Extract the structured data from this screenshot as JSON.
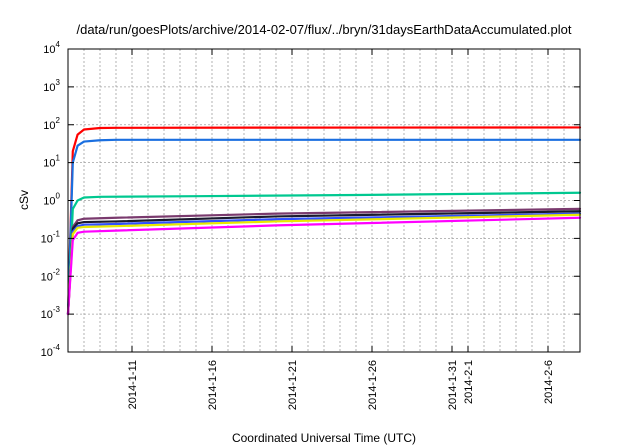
{
  "chart_data": {
    "type": "line",
    "title": "/data/run/goesPlots/archive/2014-02-07/flux/../bryn/31daysEarthDataAccumulated.plot",
    "xlabel": "Coordinated Universal Time (UTC)",
    "ylabel": "cSv",
    "y_scale": "log",
    "ylim": [
      0.0001,
      10000
    ],
    "y_ticks": [
      {
        "base": "10",
        "exp": "-4",
        "value": 0.0001
      },
      {
        "base": "10",
        "exp": "-3",
        "value": 0.001
      },
      {
        "base": "10",
        "exp": "-2",
        "value": 0.01
      },
      {
        "base": "10",
        "exp": "-1",
        "value": 0.1
      },
      {
        "base": "10",
        "exp": "0",
        "value": 1
      },
      {
        "base": "10",
        "exp": "1",
        "value": 10
      },
      {
        "base": "10",
        "exp": "2",
        "value": 100
      },
      {
        "base": "10",
        "exp": "3",
        "value": 1000
      },
      {
        "base": "10",
        "exp": "4",
        "value": 10000
      }
    ],
    "xlim": [
      "2014-01-07",
      "2014-02-08"
    ],
    "x_ticks": [
      {
        "label": "2014-1-11",
        "value": "2014-01-11"
      },
      {
        "label": "2014-1-16",
        "value": "2014-01-16"
      },
      {
        "label": "2014-1-21",
        "value": "2014-01-21"
      },
      {
        "label": "2014-1-26",
        "value": "2014-01-26"
      },
      {
        "label": "2014-1-31",
        "value": "2014-01-31"
      },
      {
        "label": "2014-2-1",
        "value": "2014-02-01"
      },
      {
        "label": "2014-2-6",
        "value": "2014-02-06"
      }
    ],
    "grid": true,
    "series": [
      {
        "color": "#ff0000",
        "points": [
          [
            "2014-01-07",
            0.001
          ],
          [
            "2014-01-07.3",
            20
          ],
          [
            "2014-01-07.6",
            55
          ],
          [
            "2014-01-08",
            75
          ],
          [
            "2014-01-09",
            82
          ],
          [
            "2014-01-10",
            83
          ],
          [
            "2014-01-20",
            84
          ],
          [
            "2014-02-08",
            85
          ]
        ]
      },
      {
        "color": "#1a6fe0",
        "points": [
          [
            "2014-01-07",
            0.001
          ],
          [
            "2014-01-07.3",
            10
          ],
          [
            "2014-01-07.6",
            28
          ],
          [
            "2014-01-08",
            36
          ],
          [
            "2014-01-09",
            39
          ],
          [
            "2014-01-10",
            40
          ],
          [
            "2014-01-20",
            40
          ],
          [
            "2014-02-08",
            40
          ]
        ]
      },
      {
        "color": "#00c890",
        "points": [
          [
            "2014-01-07",
            0.001
          ],
          [
            "2014-01-07.3",
            0.6
          ],
          [
            "2014-01-07.6",
            1.0
          ],
          [
            "2014-01-08",
            1.2
          ],
          [
            "2014-01-09",
            1.25
          ],
          [
            "2014-01-15",
            1.3
          ],
          [
            "2014-01-25",
            1.4
          ],
          [
            "2014-02-08",
            1.6
          ]
        ]
      },
      {
        "color": "#7a3a6e",
        "points": [
          [
            "2014-01-07",
            0.001
          ],
          [
            "2014-01-07.3",
            0.2
          ],
          [
            "2014-01-07.6",
            0.3
          ],
          [
            "2014-01-08",
            0.33
          ],
          [
            "2014-01-10",
            0.35
          ],
          [
            "2014-01-20",
            0.45
          ],
          [
            "2014-02-08",
            0.6
          ]
        ]
      },
      {
        "color": "#1a1a2e",
        "points": [
          [
            "2014-01-07",
            0.001
          ],
          [
            "2014-01-07.3",
            0.18
          ],
          [
            "2014-01-07.6",
            0.25
          ],
          [
            "2014-01-08",
            0.27
          ],
          [
            "2014-01-10",
            0.28
          ],
          [
            "2014-01-20",
            0.38
          ],
          [
            "2014-02-08",
            0.52
          ]
        ]
      },
      {
        "color": "#3050ff",
        "points": [
          [
            "2014-01-07",
            0.001
          ],
          [
            "2014-01-07.3",
            0.15
          ],
          [
            "2014-01-07.6",
            0.21
          ],
          [
            "2014-01-08",
            0.23
          ],
          [
            "2014-01-10",
            0.24
          ],
          [
            "2014-01-20",
            0.32
          ],
          [
            "2014-02-08",
            0.45
          ]
        ]
      },
      {
        "color": "#e8e800",
        "points": [
          [
            "2014-01-07",
            0.001
          ],
          [
            "2014-01-07.3",
            0.13
          ],
          [
            "2014-01-07.6",
            0.19
          ],
          [
            "2014-01-08",
            0.2
          ],
          [
            "2014-01-10",
            0.21
          ],
          [
            "2014-01-20",
            0.28
          ],
          [
            "2014-02-08",
            0.42
          ]
        ]
      },
      {
        "color": "#ff00ff",
        "points": [
          [
            "2014-01-07",
            0.001
          ],
          [
            "2014-01-07.3",
            0.09
          ],
          [
            "2014-01-07.6",
            0.14
          ],
          [
            "2014-01-08",
            0.15
          ],
          [
            "2014-01-10",
            0.16
          ],
          [
            "2014-01-20",
            0.22
          ],
          [
            "2014-02-08",
            0.35
          ]
        ]
      }
    ]
  }
}
